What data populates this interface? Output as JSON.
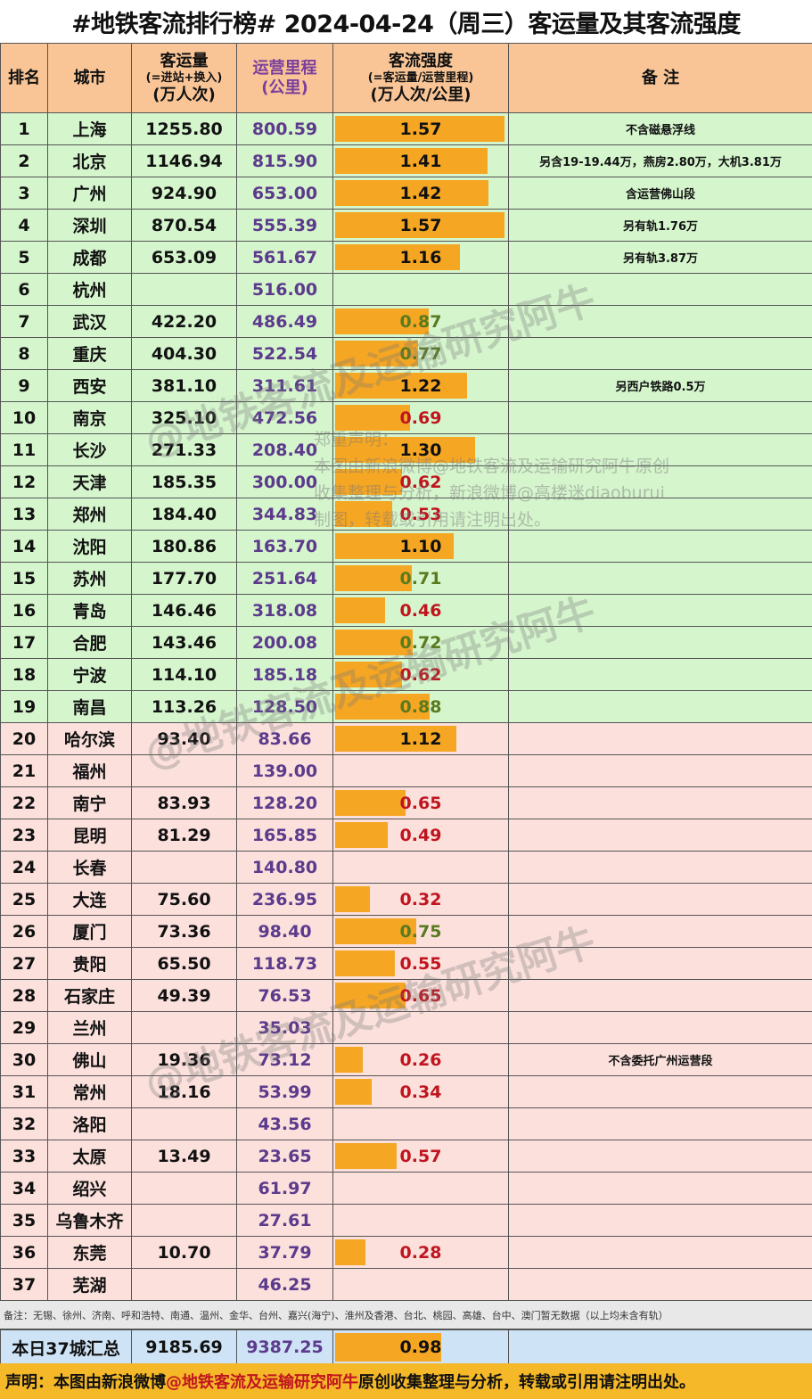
{
  "title": "#地铁客流排行榜# 2024-04-24（周三）客运量及其客流强度",
  "header": {
    "rank": "排名",
    "city": "城市",
    "passenger_l1": "客运量",
    "passenger_l2": "(=进站+换入)",
    "passenger_l3": "(万人次)",
    "mileage_l1": "运营里程",
    "mileage_l2": "(公里)",
    "intensity_l1": "客流强度",
    "intensity_l2": "(=客运量/运营里程)",
    "intensity_l3": "(万人次/公里)",
    "note": "备  注"
  },
  "rows": [
    {
      "rank": "1",
      "city": "上海",
      "passenger": "1255.80",
      "mileage": "800.59",
      "intensity": "1.57",
      "intensity_value": 1.57,
      "note": "不含磁悬浮线",
      "tier": "top"
    },
    {
      "rank": "2",
      "city": "北京",
      "passenger": "1146.94",
      "mileage": "815.90",
      "intensity": "1.41",
      "intensity_value": 1.41,
      "note": "另含19-19.44万，燕房2.80万，大机3.81万",
      "tier": "top"
    },
    {
      "rank": "3",
      "city": "广州",
      "passenger": "924.90",
      "mileage": "653.00",
      "intensity": "1.42",
      "intensity_value": 1.42,
      "note": "含运营佛山段",
      "tier": "top"
    },
    {
      "rank": "4",
      "city": "深圳",
      "passenger": "870.54",
      "mileage": "555.39",
      "intensity": "1.57",
      "intensity_value": 1.57,
      "note": "另有轨1.76万",
      "tier": "top"
    },
    {
      "rank": "5",
      "city": "成都",
      "passenger": "653.09",
      "mileage": "561.67",
      "intensity": "1.16",
      "intensity_value": 1.16,
      "note": "另有轨3.87万",
      "tier": "top"
    },
    {
      "rank": "6",
      "city": "杭州",
      "passenger": "",
      "mileage": "516.00",
      "intensity": "",
      "intensity_value": 0,
      "note": "",
      "tier": "top"
    },
    {
      "rank": "7",
      "city": "武汉",
      "passenger": "422.20",
      "mileage": "486.49",
      "intensity": "0.87",
      "intensity_value": 0.87,
      "note": "",
      "tier": "top"
    },
    {
      "rank": "8",
      "city": "重庆",
      "passenger": "404.30",
      "mileage": "522.54",
      "intensity": "0.77",
      "intensity_value": 0.77,
      "note": "",
      "tier": "top"
    },
    {
      "rank": "9",
      "city": "西安",
      "passenger": "381.10",
      "mileage": "311.61",
      "intensity": "1.22",
      "intensity_value": 1.22,
      "note": "另西户铁路0.5万",
      "tier": "top"
    },
    {
      "rank": "10",
      "city": "南京",
      "passenger": "325.10",
      "mileage": "472.56",
      "intensity": "0.69",
      "intensity_value": 0.69,
      "note": "",
      "tier": "top"
    },
    {
      "rank": "11",
      "city": "长沙",
      "passenger": "271.33",
      "mileage": "208.40",
      "intensity": "1.30",
      "intensity_value": 1.3,
      "note": "",
      "tier": "top"
    },
    {
      "rank": "12",
      "city": "天津",
      "passenger": "185.35",
      "mileage": "300.00",
      "intensity": "0.62",
      "intensity_value": 0.62,
      "note": "",
      "tier": "top"
    },
    {
      "rank": "13",
      "city": "郑州",
      "passenger": "184.40",
      "mileage": "344.83",
      "intensity": "0.53",
      "intensity_value": 0.53,
      "note": "",
      "tier": "top"
    },
    {
      "rank": "14",
      "city": "沈阳",
      "passenger": "180.86",
      "mileage": "163.70",
      "intensity": "1.10",
      "intensity_value": 1.1,
      "note": "",
      "tier": "top"
    },
    {
      "rank": "15",
      "city": "苏州",
      "passenger": "177.70",
      "mileage": "251.64",
      "intensity": "0.71",
      "intensity_value": 0.71,
      "note": "",
      "tier": "top"
    },
    {
      "rank": "16",
      "city": "青岛",
      "passenger": "146.46",
      "mileage": "318.08",
      "intensity": "0.46",
      "intensity_value": 0.46,
      "note": "",
      "tier": "top"
    },
    {
      "rank": "17",
      "city": "合肥",
      "passenger": "143.46",
      "mileage": "200.08",
      "intensity": "0.72",
      "intensity_value": 0.72,
      "note": "",
      "tier": "top"
    },
    {
      "rank": "18",
      "city": "宁波",
      "passenger": "114.10",
      "mileage": "185.18",
      "intensity": "0.62",
      "intensity_value": 0.62,
      "note": "",
      "tier": "top"
    },
    {
      "rank": "19",
      "city": "南昌",
      "passenger": "113.26",
      "mileage": "128.50",
      "intensity": "0.88",
      "intensity_value": 0.88,
      "note": "",
      "tier": "top"
    },
    {
      "rank": "20",
      "city": "哈尔滨",
      "passenger": "93.40",
      "mileage": "83.66",
      "intensity": "1.12",
      "intensity_value": 1.12,
      "note": "",
      "tier": "low"
    },
    {
      "rank": "21",
      "city": "福州",
      "passenger": "",
      "mileage": "139.00",
      "intensity": "",
      "intensity_value": 0,
      "note": "",
      "tier": "low"
    },
    {
      "rank": "22",
      "city": "南宁",
      "passenger": "83.93",
      "mileage": "128.20",
      "intensity": "0.65",
      "intensity_value": 0.65,
      "note": "",
      "tier": "low"
    },
    {
      "rank": "23",
      "city": "昆明",
      "passenger": "81.29",
      "mileage": "165.85",
      "intensity": "0.49",
      "intensity_value": 0.49,
      "note": "",
      "tier": "low"
    },
    {
      "rank": "24",
      "city": "长春",
      "passenger": "",
      "mileage": "140.80",
      "intensity": "",
      "intensity_value": 0,
      "note": "",
      "tier": "low"
    },
    {
      "rank": "25",
      "city": "大连",
      "passenger": "75.60",
      "mileage": "236.95",
      "intensity": "0.32",
      "intensity_value": 0.32,
      "note": "",
      "tier": "low"
    },
    {
      "rank": "26",
      "city": "厦门",
      "passenger": "73.36",
      "mileage": "98.40",
      "intensity": "0.75",
      "intensity_value": 0.75,
      "note": "",
      "tier": "low"
    },
    {
      "rank": "27",
      "city": "贵阳",
      "passenger": "65.50",
      "mileage": "118.73",
      "intensity": "0.55",
      "intensity_value": 0.55,
      "note": "",
      "tier": "low"
    },
    {
      "rank": "28",
      "city": "石家庄",
      "passenger": "49.39",
      "mileage": "76.53",
      "intensity": "0.65",
      "intensity_value": 0.65,
      "note": "",
      "tier": "low"
    },
    {
      "rank": "29",
      "city": "兰州",
      "passenger": "",
      "mileage": "35.03",
      "intensity": "",
      "intensity_value": 0,
      "note": "",
      "tier": "low"
    },
    {
      "rank": "30",
      "city": "佛山",
      "passenger": "19.36",
      "mileage": "73.12",
      "intensity": "0.26",
      "intensity_value": 0.26,
      "note": "不含委托广州运营段",
      "tier": "low"
    },
    {
      "rank": "31",
      "city": "常州",
      "passenger": "18.16",
      "mileage": "53.99",
      "intensity": "0.34",
      "intensity_value": 0.34,
      "note": "",
      "tier": "low"
    },
    {
      "rank": "32",
      "city": "洛阳",
      "passenger": "",
      "mileage": "43.56",
      "intensity": "",
      "intensity_value": 0,
      "note": "",
      "tier": "low"
    },
    {
      "rank": "33",
      "city": "太原",
      "passenger": "13.49",
      "mileage": "23.65",
      "intensity": "0.57",
      "intensity_value": 0.57,
      "note": "",
      "tier": "low"
    },
    {
      "rank": "34",
      "city": "绍兴",
      "passenger": "",
      "mileage": "61.97",
      "intensity": "",
      "intensity_value": 0,
      "note": "",
      "tier": "low"
    },
    {
      "rank": "35",
      "city": "乌鲁木齐",
      "passenger": "",
      "mileage": "27.61",
      "intensity": "",
      "intensity_value": 0,
      "note": "",
      "tier": "low"
    },
    {
      "rank": "36",
      "city": "东莞",
      "passenger": "10.70",
      "mileage": "37.79",
      "intensity": "0.28",
      "intensity_value": 0.28,
      "note": "",
      "tier": "low"
    },
    {
      "rank": "37",
      "city": "芜湖",
      "passenger": "",
      "mileage": "46.25",
      "intensity": "",
      "intensity_value": 0,
      "note": "",
      "tier": "low"
    }
  ],
  "footnote": "备注：无锡、徐州、济南、呼和浩特、南通、温州、金华、台州、嘉兴(海宁)、淮州及香港、台北、桃园、高雄、台中、澳门暂无数据（以上均未含有轨）",
  "total": {
    "label": "本日37城汇总",
    "passenger": "9185.69",
    "mileage": "9387.25",
    "intensity": "0.98",
    "intensity_value": 0.98
  },
  "declaration": {
    "prefix": "声明：本图由新浪微博",
    "highlight": "@地铁客流及运输研究阿牛",
    "suffix": "原创收集整理与分析，转载或引用请注明出处。"
  },
  "statement": {
    "line1": "郑重声明：",
    "line2": "本图由新浪微博@地铁客流及运输研究阿牛原创",
    "line3": "收集整理与分析，新浪微博@高楼迷diaoburui",
    "line4": "制图，转载或引用请注明出处。"
  },
  "watermark_text": "@地铁客流及运输研究阿牛",
  "bar_scale_max": 1.57,
  "colors": {
    "header_bg": "#f9c596",
    "top_tier_bg": "#d5f5cd",
    "low_tier_bg": "#fbe0dc",
    "bar": "#f5a623",
    "total_bg": "#cfe3f7",
    "declaration_bg": "#f5b828",
    "mileage_text": "#5c3a8c",
    "low_intensity_text": "#c0151f"
  }
}
